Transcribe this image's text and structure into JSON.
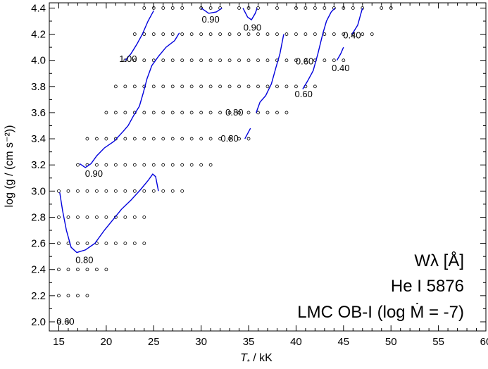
{
  "chart_data": {
    "type": "contour",
    "xlabel": "T",
    "xlabel_sub": "*",
    "xlabel_unit": " / kK",
    "ylabel": "log (g / (cm s⁻²))",
    "xlim": [
      14,
      60
    ],
    "ylim": [
      1.93,
      4.44
    ],
    "x_ticks": [
      15,
      20,
      25,
      30,
      35,
      40,
      45,
      50,
      55,
      60
    ],
    "y_ticks": [
      2.0,
      2.2,
      2.4,
      2.6,
      2.8,
      3.0,
      3.2,
      3.4,
      3.6,
      3.8,
      4.0,
      4.2,
      4.4
    ],
    "y_tick_labels": [
      "2.0",
      "2.2",
      "2.4",
      "2.6",
      "2.8",
      "3.0",
      "3.2",
      "3.4",
      "3.6",
      "3.8",
      "4.0",
      "4.2",
      "4.4"
    ],
    "annotations": [
      {
        "id": "quantity",
        "text": "Wλ [Å]"
      },
      {
        "id": "line",
        "text": "He I 5876"
      },
      {
        "id": "grid",
        "text": "LMC OB-I (log Ṁ = -7)"
      }
    ],
    "colors": {
      "contour": "#0000dd",
      "grid_point": "#000000",
      "axes": "#000000"
    },
    "grid_rows": [
      {
        "logg": 4.4,
        "teff": [
          24,
          25,
          26,
          27,
          28,
          30,
          31,
          32,
          34,
          35,
          36,
          38,
          40,
          41,
          42,
          43,
          44,
          45,
          46,
          47,
          49,
          50
        ]
      },
      {
        "logg": 4.2,
        "teff": [
          23,
          24,
          25,
          26,
          27,
          28,
          29,
          30,
          31,
          32,
          33,
          34,
          35,
          36,
          37,
          38,
          39,
          40,
          41,
          42,
          43,
          44,
          45,
          46,
          47,
          48
        ]
      },
      {
        "logg": 4.0,
        "teff": [
          22,
          23,
          24,
          25,
          26,
          27,
          28,
          29,
          30,
          31,
          32,
          33,
          34,
          35,
          36,
          37,
          38,
          39,
          40,
          41,
          42,
          43,
          44,
          45
        ]
      },
      {
        "logg": 3.8,
        "teff": [
          21,
          22,
          23,
          24,
          25,
          26,
          27,
          28,
          29,
          30,
          31,
          32,
          33,
          34,
          35,
          36,
          37,
          38,
          39,
          40,
          41,
          42
        ]
      },
      {
        "logg": 3.6,
        "teff": [
          20,
          21,
          22,
          23,
          24,
          25,
          26,
          27,
          28,
          29,
          30,
          31,
          32,
          33,
          34,
          35,
          36,
          37,
          38,
          39
        ]
      },
      {
        "logg": 3.4,
        "teff": [
          18,
          19,
          20,
          21,
          22,
          23,
          24,
          25,
          26,
          27,
          28,
          29,
          30,
          31,
          32,
          33,
          34,
          35
        ]
      },
      {
        "logg": 3.2,
        "teff": [
          17,
          18,
          19,
          20,
          21,
          22,
          23,
          24,
          25,
          26,
          27,
          28,
          29,
          30,
          31
        ]
      },
      {
        "logg": 3.0,
        "teff": [
          15,
          16,
          17,
          18,
          19,
          20,
          21,
          22,
          23,
          24,
          25,
          26,
          27,
          28
        ]
      },
      {
        "logg": 2.8,
        "teff": [
          15,
          16,
          17,
          18,
          19,
          20,
          21,
          22,
          23,
          24
        ]
      },
      {
        "logg": 2.6,
        "teff": [
          15,
          16,
          17,
          18,
          19,
          20,
          21,
          22,
          23,
          24
        ]
      },
      {
        "logg": 2.4,
        "teff": [
          15,
          16,
          17,
          18,
          19,
          20
        ]
      },
      {
        "logg": 2.2,
        "teff": [
          15,
          16,
          17,
          18
        ]
      },
      {
        "logg": 2.0,
        "teff": [
          15,
          16
        ]
      }
    ],
    "contours": [
      {
        "level": "0.80",
        "points": [
          [
            15.1,
            2.99
          ],
          [
            15.4,
            2.85
          ],
          [
            15.8,
            2.7
          ],
          [
            16.3,
            2.57
          ],
          [
            16.9,
            2.53
          ],
          [
            17.8,
            2.55
          ],
          [
            18.8,
            2.6
          ],
          [
            19.8,
            2.7
          ],
          [
            20.7,
            2.78
          ],
          [
            21.6,
            2.86
          ],
          [
            22.6,
            2.93
          ],
          [
            23.6,
            3.01
          ],
          [
            24.4,
            3.08
          ],
          [
            24.9,
            3.13
          ],
          [
            25.2,
            3.11
          ],
          [
            25.5,
            3.0
          ]
        ]
      },
      {
        "level": "0.90",
        "points": [
          [
            17.2,
            3.21
          ],
          [
            17.8,
            3.18
          ],
          [
            18.4,
            3.21
          ],
          [
            19.0,
            3.27
          ],
          [
            19.8,
            3.33
          ],
          [
            20.8,
            3.38
          ],
          [
            21.7,
            3.45
          ],
          [
            22.3,
            3.5
          ],
          [
            22.9,
            3.58
          ],
          [
            23.5,
            3.65
          ],
          [
            23.9,
            3.75
          ],
          [
            24.3,
            3.86
          ],
          [
            24.8,
            3.96
          ],
          [
            25.5,
            4.03
          ],
          [
            26.3,
            4.1
          ],
          [
            27.2,
            4.15
          ],
          [
            27.7,
            4.21
          ]
        ]
      },
      {
        "level": "1.00",
        "points": [
          [
            22.0,
            4.0
          ],
          [
            22.6,
            4.05
          ],
          [
            23.2,
            4.12
          ],
          [
            23.8,
            4.2
          ],
          [
            24.4,
            4.3
          ],
          [
            25.0,
            4.38
          ]
        ]
      },
      {
        "level": "0.90",
        "points": [
          [
            30.0,
            4.4
          ],
          [
            30.8,
            4.36
          ],
          [
            31.6,
            4.37
          ],
          [
            32.2,
            4.4
          ]
        ]
      },
      {
        "level": "0.90",
        "points": [
          [
            34.4,
            4.4
          ],
          [
            34.9,
            4.33
          ],
          [
            35.3,
            4.31
          ],
          [
            35.7,
            4.36
          ],
          [
            35.9,
            4.4
          ]
        ]
      },
      {
        "level": "0.80",
        "points": [
          [
            34.6,
            3.4
          ],
          [
            35.2,
            3.48
          ]
        ]
      },
      {
        "level": "0.80",
        "points": [
          [
            35.8,
            3.6
          ],
          [
            36.2,
            3.68
          ],
          [
            36.8,
            3.73
          ],
          [
            37.4,
            3.82
          ],
          [
            37.9,
            3.95
          ],
          [
            38.3,
            4.05
          ],
          [
            38.7,
            4.2
          ]
        ]
      },
      {
        "level": "0.60",
        "points": [
          [
            40.7,
            3.78
          ],
          [
            41.2,
            3.84
          ],
          [
            41.8,
            3.92
          ],
          [
            42.3,
            4.05
          ],
          [
            42.8,
            4.2
          ],
          [
            43.2,
            4.3
          ],
          [
            43.7,
            4.37
          ],
          [
            44.1,
            4.4
          ]
        ]
      },
      {
        "level": "0.40",
        "points": [
          [
            44.3,
            4.0
          ],
          [
            44.7,
            4.05
          ],
          [
            45.0,
            4.1
          ]
        ]
      },
      {
        "level": "0.40",
        "points": [
          [
            45.9,
            4.2
          ],
          [
            46.5,
            4.27
          ],
          [
            46.8,
            4.35
          ],
          [
            47.0,
            4.4
          ]
        ]
      }
    ],
    "contour_labels": [
      {
        "text": "0.60",
        "x": 15.7,
        "y": 2.0
      },
      {
        "text": "0.80",
        "x": 17.7,
        "y": 2.47
      },
      {
        "text": "0.90",
        "x": 18.7,
        "y": 3.13
      },
      {
        "text": "1.00",
        "x": 22.3,
        "y": 4.01
      },
      {
        "text": "0.90",
        "x": 31.0,
        "y": 4.31
      },
      {
        "text": "0.90",
        "x": 35.4,
        "y": 4.25
      },
      {
        "text": "0.80",
        "x": 33.5,
        "y": 3.6
      },
      {
        "text": "0.80",
        "x": 33.0,
        "y": 3.4
      },
      {
        "text": "0.60",
        "x": 40.9,
        "y": 3.99
      },
      {
        "text": "0.60",
        "x": 40.8,
        "y": 3.74
      },
      {
        "text": "0.40",
        "x": 45.9,
        "y": 4.19
      },
      {
        "text": "0.40",
        "x": 44.7,
        "y": 3.94
      }
    ]
  }
}
